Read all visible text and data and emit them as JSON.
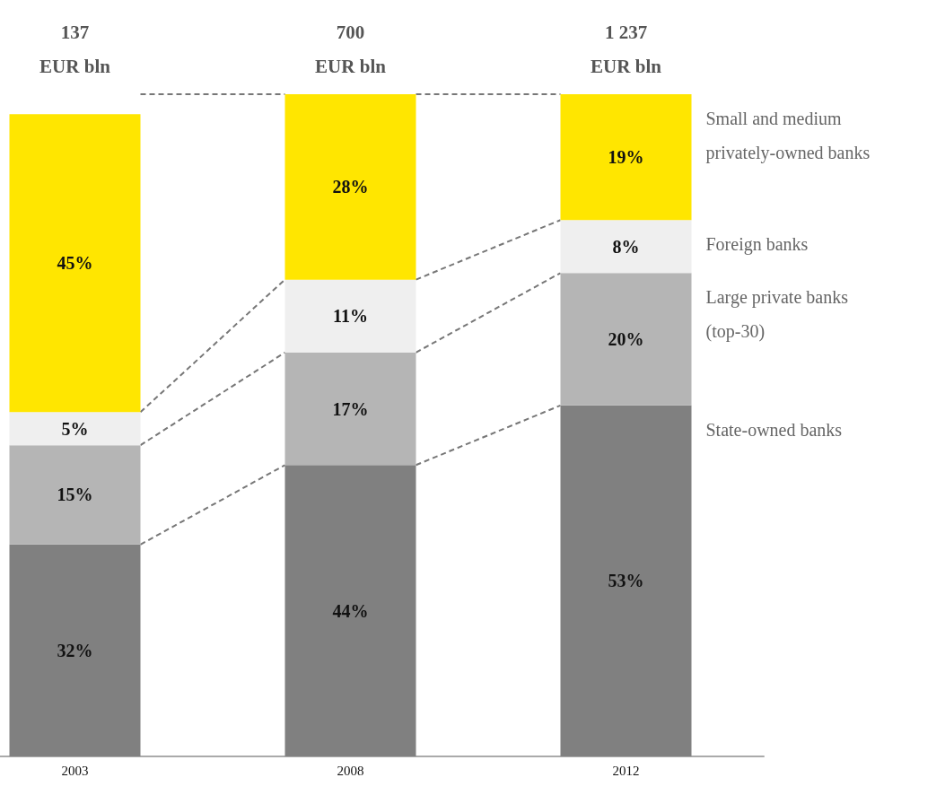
{
  "chart_data": {
    "type": "bar",
    "stacked": true,
    "categories": [
      "2003",
      "2008",
      "2012"
    ],
    "series": [
      {
        "name": "State-owned banks",
        "color": "#808080",
        "values": [
          32,
          44,
          53
        ],
        "value_labels": [
          "32%",
          "44%",
          "53%"
        ]
      },
      {
        "name": "Large private banks (top-30)",
        "color": "#b5b5b5",
        "values": [
          15,
          17,
          20
        ],
        "value_labels": [
          "15%",
          "17%",
          "20%"
        ]
      },
      {
        "name": "Foreign banks",
        "color": "#efefef",
        "values": [
          5,
          11,
          8
        ],
        "value_labels": [
          "5%",
          "11%",
          "8%"
        ]
      },
      {
        "name": "Small and medium privately-owned banks",
        "color": "#ffe600",
        "values": [
          45,
          28,
          19
        ],
        "value_labels": [
          "45%",
          "28%",
          "19%"
        ]
      }
    ],
    "annotations": [
      "137\nEUR bln",
      "700\nEUR bln",
      "1 237\nEUR bln"
    ],
    "legend": false,
    "grid": false
  }
}
